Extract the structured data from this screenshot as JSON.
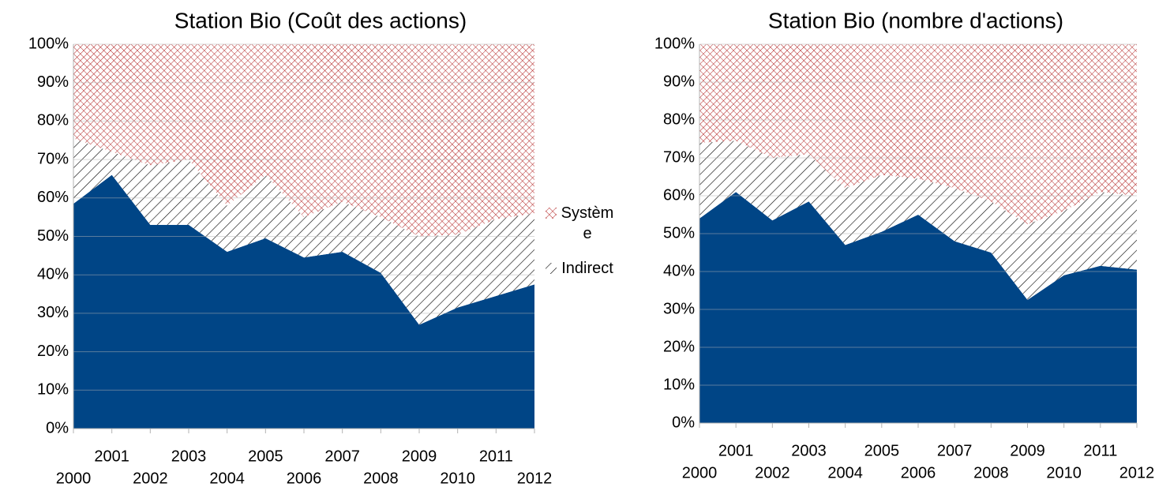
{
  "chart_data": [
    {
      "type": "area",
      "stacked": true,
      "title": "Station Bio (Coût des actions)",
      "categories": [
        "2000",
        "2001",
        "2002",
        "2003",
        "2004",
        "2005",
        "2006",
        "2007",
        "2008",
        "2009",
        "2010",
        "2011",
        "2012"
      ],
      "series": [
        {
          "color": "#004586",
          "values": [
            58.5,
            66,
            53,
            53,
            46,
            49.5,
            44.5,
            46,
            40.5,
            27,
            31.5,
            34.5,
            37.5
          ]
        },
        {
          "name": "Indirect",
          "color": "#000000",
          "pattern": "hatch",
          "values": [
            17,
            6,
            15.5,
            17,
            12,
            16.5,
            10.5,
            13,
            14.5,
            23,
            19,
            20,
            18.5
          ]
        },
        {
          "name": "Système",
          "color": "#b22222",
          "pattern": "crosshatch",
          "values": [
            24.5,
            28,
            31.5,
            30,
            42,
            34,
            45,
            41,
            45,
            50,
            49.5,
            45.5,
            44
          ]
        }
      ],
      "ylim": [
        0,
        100
      ],
      "yticks": [
        {
          "value": 0,
          "label": "0%"
        },
        {
          "value": 10,
          "label": "10%"
        },
        {
          "value": 20,
          "label": "20%"
        },
        {
          "value": 30,
          "label": "30%"
        },
        {
          "value": 40,
          "label": "40%"
        },
        {
          "value": 50,
          "label": "50%"
        },
        {
          "value": 60,
          "label": "60%"
        },
        {
          "value": 70,
          "label": "70%"
        },
        {
          "value": 80,
          "label": "80%"
        },
        {
          "value": 90,
          "label": "90%"
        },
        {
          "value": 100,
          "label": "100%"
        }
      ],
      "grid": true,
      "legend": "right"
    },
    {
      "type": "area",
      "stacked": true,
      "title": "Station Bio (nombre d'actions)",
      "categories": [
        "2000",
        "2001",
        "2002",
        "2003",
        "2004",
        "2005",
        "2006",
        "2007",
        "2008",
        "2009",
        "2010",
        "2011",
        "2012"
      ],
      "series": [
        {
          "color": "#004586",
          "values": [
            54,
            61,
            53.5,
            58.5,
            47,
            50.5,
            55,
            48,
            45,
            32.5,
            39,
            41.5,
            40.5
          ]
        },
        {
          "color": "#000000",
          "pattern": "hatch",
          "values": [
            20,
            13.5,
            16.5,
            12.5,
            15,
            15,
            9.5,
            14,
            13.5,
            20,
            17,
            19.5,
            19.5
          ]
        },
        {
          "color": "#b22222",
          "pattern": "crosshatch",
          "values": [
            26,
            25.5,
            30,
            29,
            38,
            34.5,
            35.5,
            38,
            41.5,
            47.5,
            44,
            39,
            40
          ]
        }
      ],
      "ylim": [
        0,
        100
      ],
      "yticks": [
        {
          "value": 0,
          "label": "0%"
        },
        {
          "value": 10,
          "label": "10%"
        },
        {
          "value": 20,
          "label": "20%"
        },
        {
          "value": 30,
          "label": "30%"
        },
        {
          "value": 40,
          "label": "40%"
        },
        {
          "value": 50,
          "label": "50%"
        },
        {
          "value": 60,
          "label": "60%"
        },
        {
          "value": 70,
          "label": "70%"
        },
        {
          "value": 80,
          "label": "80%"
        },
        {
          "value": 90,
          "label": "90%"
        },
        {
          "value": 100,
          "label": "100%"
        }
      ],
      "grid": true
    }
  ]
}
